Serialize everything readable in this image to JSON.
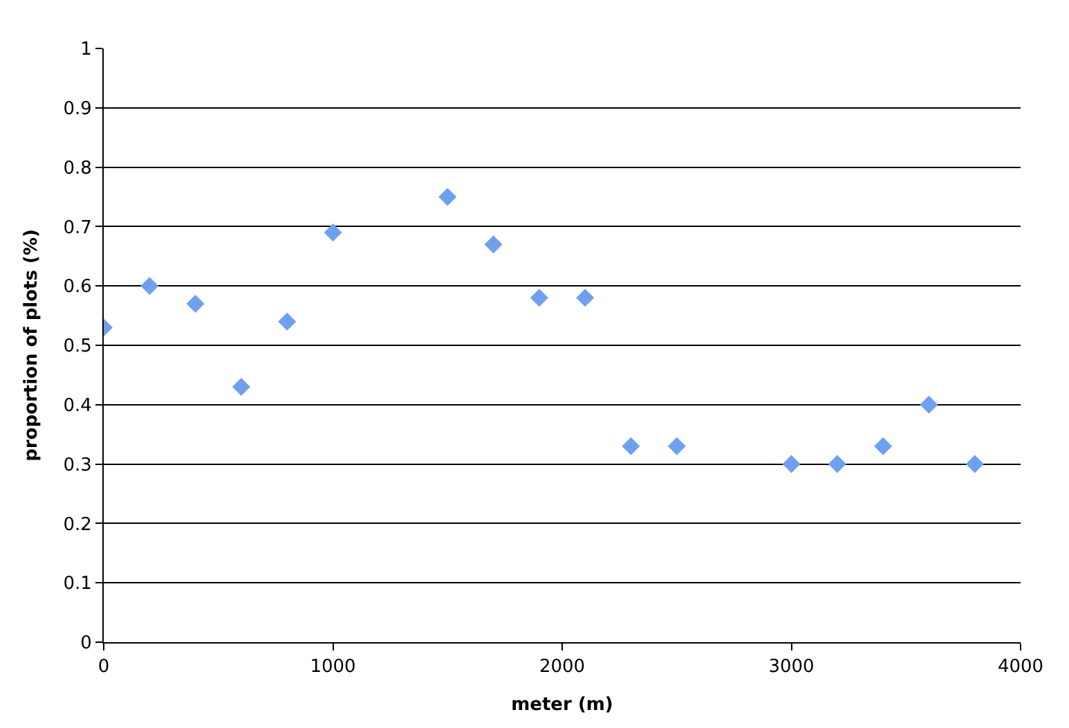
{
  "chart_data": {
    "type": "scatter",
    "xlabel": "meter (m)",
    "ylabel": "proportion of plots (%)",
    "x": [
      0,
      200,
      400,
      600,
      800,
      1000,
      1500,
      1700,
      1900,
      2100,
      2300,
      2500,
      3000,
      3200,
      3400,
      3600,
      3800
    ],
    "series": [
      {
        "color": "#6fa0f0",
        "values": [
          0.53,
          0.6,
          0.57,
          0.43,
          0.54,
          0.69,
          0.75,
          0.67,
          0.58,
          0.58,
          0.33,
          0.33,
          0.3,
          0.3,
          0.33,
          0.4,
          0.3
        ]
      }
    ],
    "xlim": [
      0,
      4000
    ],
    "xticks": [
      0,
      1000,
      2000,
      3000,
      4000
    ],
    "ylim": [
      0,
      1
    ],
    "yticks": [
      0,
      0.1,
      0.2,
      0.3,
      0.4,
      0.5,
      0.6,
      0.7,
      0.8,
      0.9,
      1
    ],
    "grid": "y",
    "marker": "diamond"
  }
}
